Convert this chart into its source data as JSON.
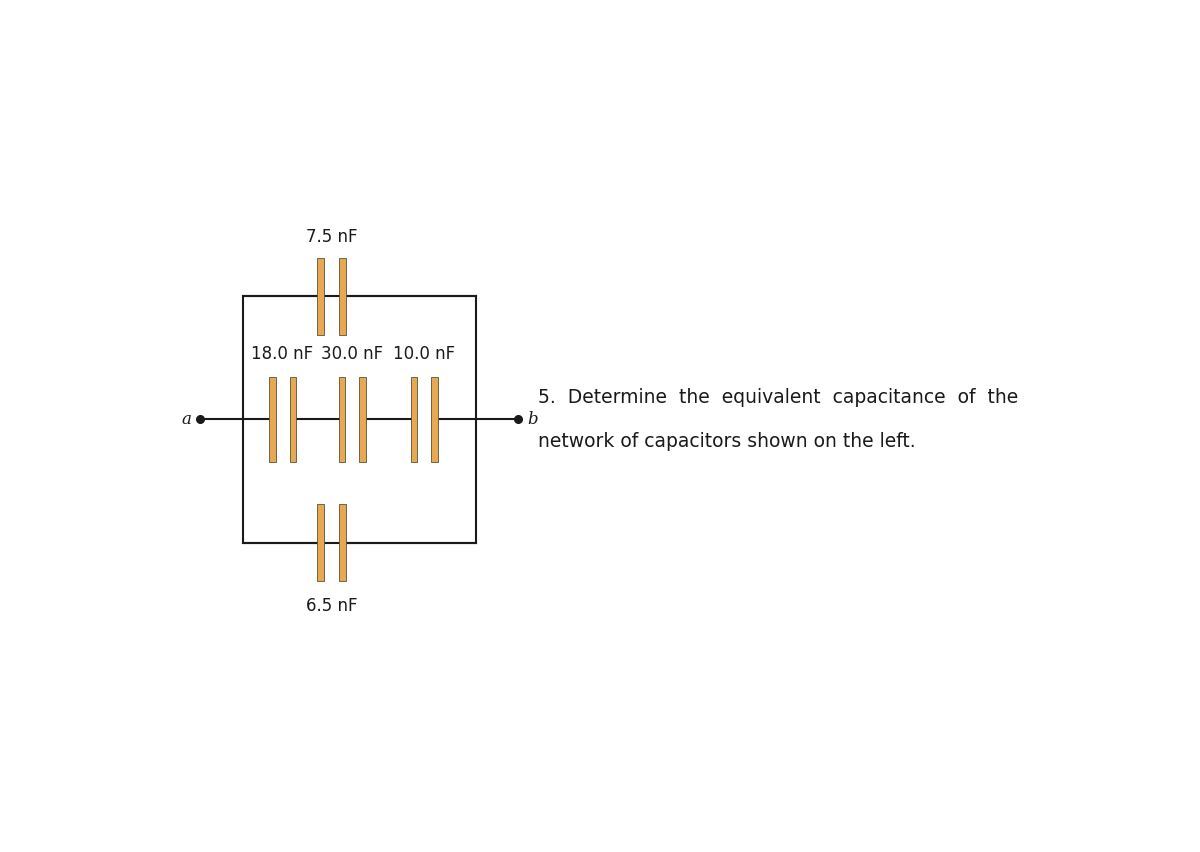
{
  "bg_color": "#ffffff",
  "line_color": "#1a1a1a",
  "cap_plate_color": "#e8a853",
  "fig_width": 12.0,
  "fig_height": 8.52,
  "dpi": 100,
  "label_top": "7.5 nF",
  "label_bottom": "6.5 nF",
  "label_c1": "18.0 nF",
  "label_c2": "30.0 nF",
  "label_c3": "10.0 nF",
  "label_a": "a",
  "label_b": "b",
  "problem_text_line1": "5.  Determine  the  equivalent  capacitance  of  the",
  "problem_text_line2": "network of capacitors shown on the left.",
  "font_size_labels": 12,
  "font_size_ab": 12,
  "font_size_problem": 13.5
}
